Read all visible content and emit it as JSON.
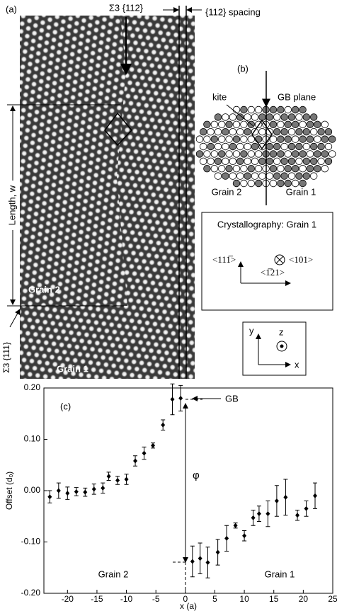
{
  "panel_a": {
    "label": "(a)",
    "boundary": "Σ3 {112}",
    "spacing": "{112} spacing",
    "length": "Length, w",
    "grain_2": "Grain 2",
    "grain_1": "Grain 1",
    "twin": "Σ3 {111}"
  },
  "panel_b": {
    "label": "(b)",
    "kite": "kite",
    "gb_plane": "GB plane",
    "grain_2": "Grain 2",
    "grain_1": "Grain 1"
  },
  "crystallography": {
    "title": "Crystallography: Grain 1",
    "direction_up": "<111̅>",
    "direction_out": "<101>",
    "direction_right": "<1̅21>"
  },
  "axes_key": {
    "y": "y",
    "z": "z",
    "x": "x"
  },
  "chart_data": {
    "type": "scatter",
    "label": "(c)",
    "xlabel": "x (a)",
    "ylabel": "Offset (dₒ)",
    "annotations": {
      "gb": "GB",
      "phi": "φ",
      "grain_2": "Grain 2",
      "grain_1": "Grain 1"
    },
    "color": "#000000",
    "x": [
      -23,
      -21.5,
      -20,
      -18.5,
      -17,
      -15.5,
      -14,
      -13,
      -11.5,
      -10,
      -8.5,
      -7,
      -5.5,
      -3.8,
      -2.2,
      -0.8,
      1.2,
      2.5,
      3.8,
      5.5,
      7,
      8.5,
      10,
      11.5,
      12.5,
      14,
      15.5,
      17,
      19,
      20.5,
      22
    ],
    "values": [
      -0.012,
      0.0,
      -0.005,
      -0.002,
      -0.003,
      0.003,
      0.005,
      0.028,
      0.02,
      0.022,
      0.058,
      0.073,
      0.088,
      0.128,
      0.178,
      0.18,
      -0.138,
      -0.132,
      -0.14,
      -0.12,
      -0.093,
      -0.068,
      -0.088,
      -0.053,
      -0.045,
      -0.045,
      -0.02,
      -0.013,
      -0.048,
      -0.035,
      -0.01
    ],
    "errors": [
      0.012,
      0.015,
      0.012,
      0.008,
      0.008,
      0.01,
      0.01,
      0.008,
      0.008,
      0.01,
      0.01,
      0.012,
      0.005,
      0.01,
      0.03,
      0.025,
      0.03,
      0.03,
      0.03,
      0.025,
      0.025,
      0.005,
      0.01,
      0.015,
      0.015,
      0.025,
      0.03,
      0.035,
      0.01,
      0.015,
      0.025
    ],
    "xlim": [
      -24,
      25
    ],
    "xticks": [
      -20,
      -15,
      -10,
      -5,
      0,
      5,
      10,
      15,
      20,
      25
    ],
    "ylim": [
      -0.2,
      0.2
    ],
    "yticks": [
      {
        "value": -0.2,
        "label": "-0.20"
      },
      {
        "value": -0.1,
        "label": "-0.10"
      },
      {
        "value": 0,
        "label": "0.00"
      },
      {
        "value": 0.1,
        "label": "0.10"
      },
      {
        "value": 0.2,
        "label": "0.20"
      }
    ]
  }
}
